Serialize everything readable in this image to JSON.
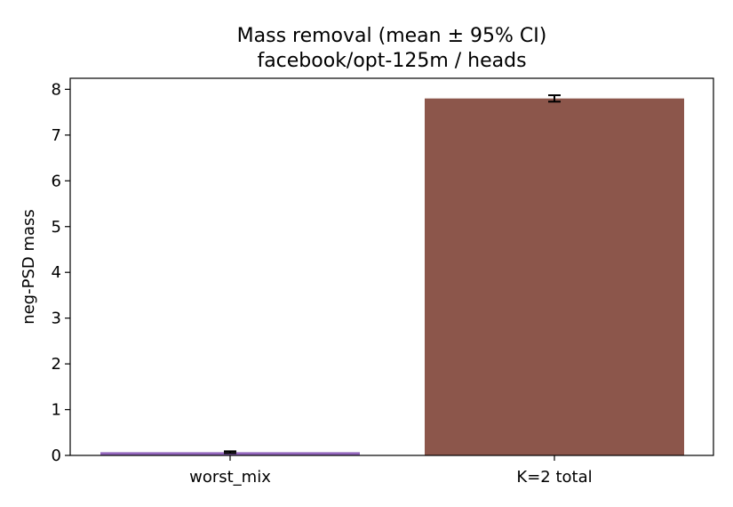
{
  "chart_data": {
    "type": "bar",
    "title_lines": [
      "Mass removal (mean ± 95% CI)",
      "facebook/opt-125m / heads"
    ],
    "xlabel": "",
    "ylabel": "neg-PSD mass",
    "categories": [
      "worst_mix",
      "K=2 total"
    ],
    "values": [
      0.07,
      7.8
    ],
    "errors": [
      0.02,
      0.07
    ],
    "colors": [
      "#9467bd",
      "#8c564b"
    ],
    "ylim": [
      0,
      8.25
    ],
    "yticks": [
      0,
      1,
      2,
      3,
      4,
      5,
      6,
      7,
      8
    ],
    "grid": false,
    "legend": "none"
  }
}
